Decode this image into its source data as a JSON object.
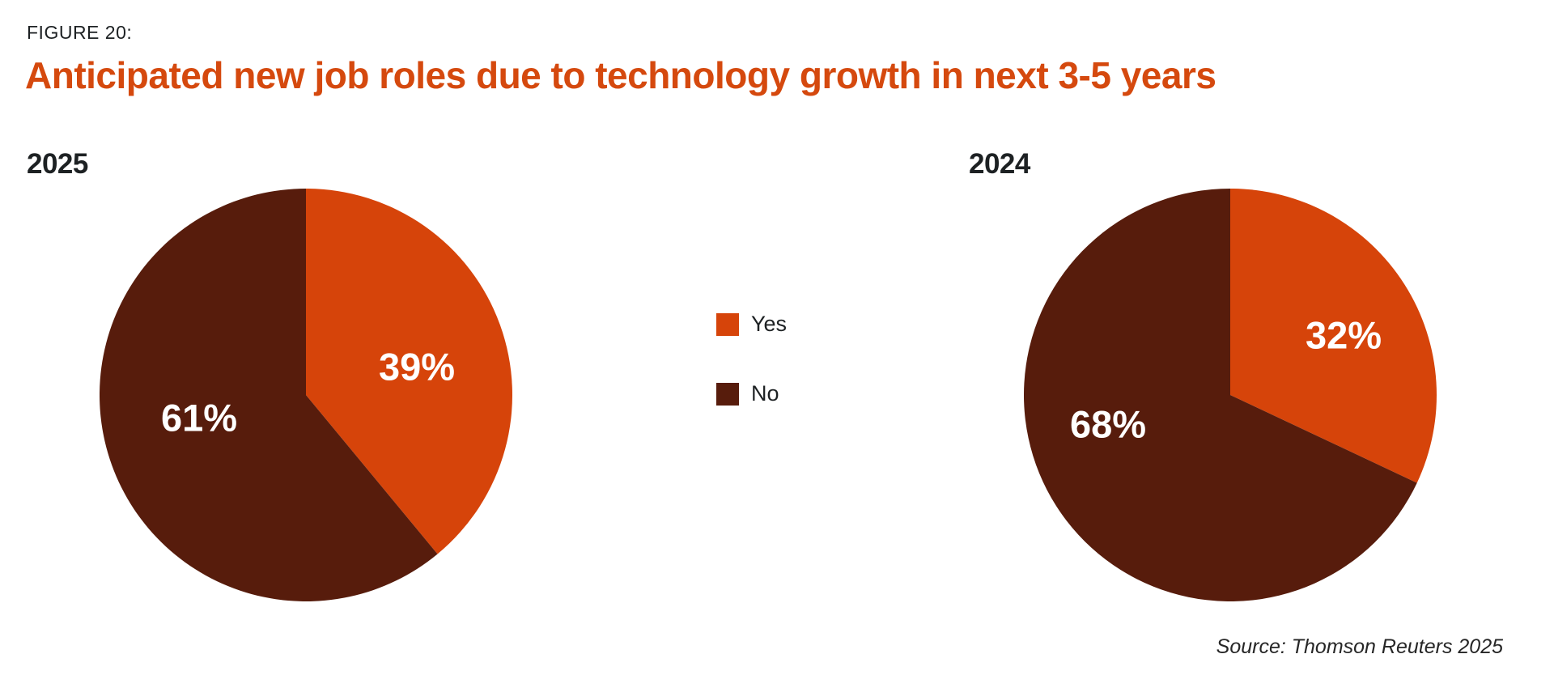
{
  "figure": {
    "kicker": "FIGURE 20:",
    "title": "Anticipated new job roles due to technology growth in next 3-5 years",
    "source": "Source: Thomson Reuters 2025"
  },
  "legend": {
    "position": "center-between-charts",
    "items": [
      {
        "label": "Yes",
        "color": "#d6440a"
      },
      {
        "label": "No",
        "color": "#571c0c"
      }
    ]
  },
  "colors": {
    "accent_orange": "#d6440a",
    "dark_brown": "#571c0c",
    "title_orange": "#d5490e",
    "text_dark": "#1d2123",
    "background": "#ffffff",
    "slice_label_text": "#ffffff"
  },
  "chart_data": [
    {
      "type": "pie",
      "title": "2025",
      "categories": [
        "Yes",
        "No"
      ],
      "values": [
        39,
        61
      ],
      "labels": [
        "39%",
        "61%"
      ],
      "colors": [
        "#d6440a",
        "#571c0c"
      ],
      "start_angle_deg": 0,
      "direction": "clockwise",
      "grid": false,
      "legend_position": "right-of-chart"
    },
    {
      "type": "pie",
      "title": "2024",
      "categories": [
        "Yes",
        "No"
      ],
      "values": [
        32,
        68
      ],
      "labels": [
        "32%",
        "68%"
      ],
      "colors": [
        "#d6440a",
        "#571c0c"
      ],
      "start_angle_deg": 0,
      "direction": "clockwise",
      "grid": false,
      "legend_position": "left-of-chart"
    }
  ]
}
